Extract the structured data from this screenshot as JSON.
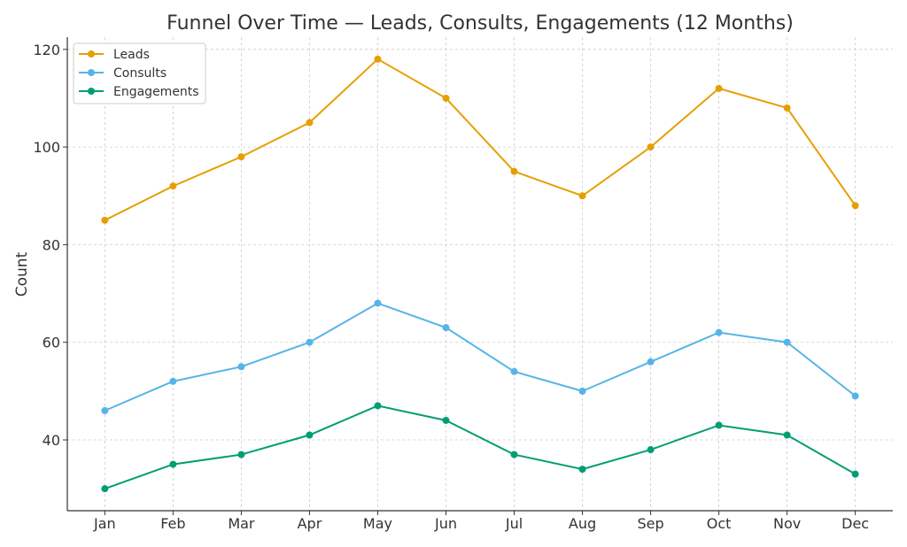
{
  "chart_data": {
    "type": "line",
    "title": "Funnel Over Time — Leads, Consults, Engagements (12 Months)",
    "xlabel": "",
    "ylabel": "Count",
    "categories": [
      "Jan",
      "Feb",
      "Mar",
      "Apr",
      "May",
      "Jun",
      "Jul",
      "Aug",
      "Sep",
      "Oct",
      "Nov",
      "Dec"
    ],
    "ylim": [
      25.5,
      122.5
    ],
    "yticks": [
      40,
      60,
      80,
      100,
      120
    ],
    "grid": true,
    "legend_position": "top-left",
    "series": [
      {
        "name": "Leads",
        "color": "#E69F00",
        "values": [
          85,
          92,
          98,
          105,
          118,
          110,
          95,
          90,
          100,
          112,
          108,
          88
        ]
      },
      {
        "name": "Consults",
        "color": "#56B4E9",
        "values": [
          46,
          52,
          55,
          60,
          68,
          63,
          54,
          50,
          56,
          62,
          60,
          49
        ]
      },
      {
        "name": "Engagements",
        "color": "#009E73",
        "values": [
          30,
          35,
          37,
          41,
          47,
          44,
          37,
          34,
          38,
          43,
          41,
          33
        ]
      }
    ]
  }
}
